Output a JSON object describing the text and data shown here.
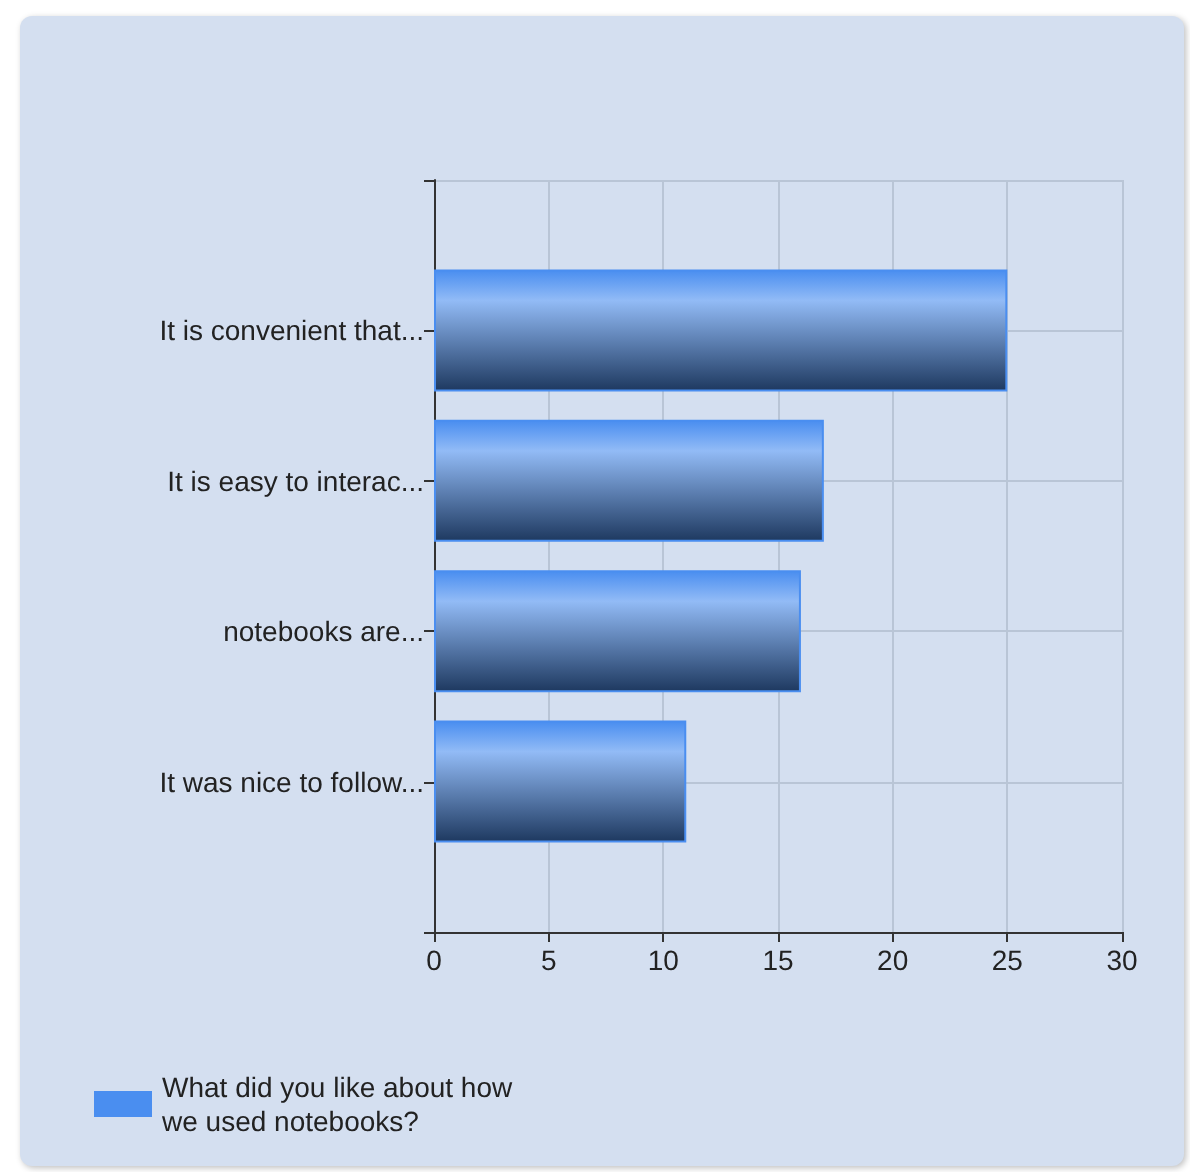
{
  "chart_data": {
    "type": "bar",
    "orientation": "horizontal",
    "categories": [
      "It is convenient that...",
      "It is easy to interac...",
      "notebooks are...",
      "It was nice to follow..."
    ],
    "series": [
      {
        "name": "What did you like about how we used notebooks?",
        "color": "#4a8ef0",
        "values": [
          25,
          17,
          16,
          11
        ]
      }
    ],
    "xlim": [
      0,
      30
    ],
    "xticks": [
      0,
      5,
      10,
      15,
      20,
      25,
      30
    ],
    "grid": true,
    "legend": "bottom left"
  }
}
